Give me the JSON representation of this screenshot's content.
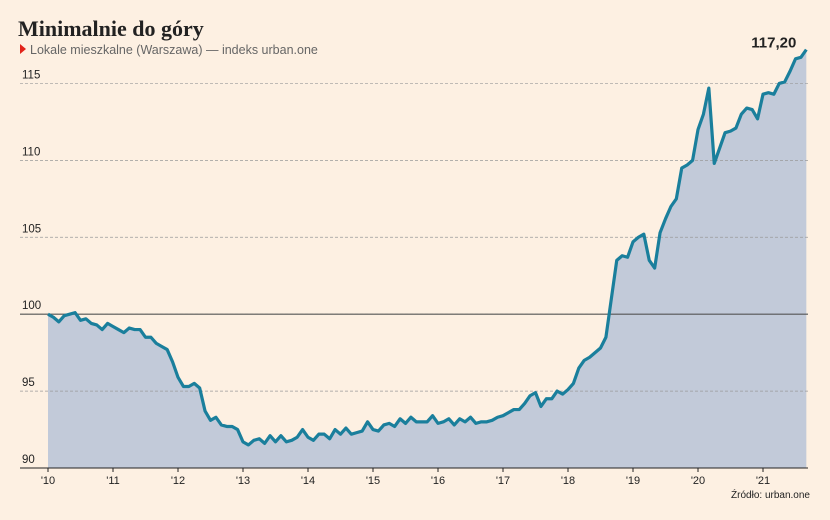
{
  "chart_data": {
    "type": "area",
    "title": "Minimalnie do góry",
    "subtitle": "Lokale mieszkalne (Warszawa) — indeks urban.one",
    "source": "Źródło: urban.one",
    "categories": [
      "'10",
      null,
      null,
      null,
      null,
      null,
      null,
      null,
      null,
      null,
      null,
      null,
      "'11",
      null,
      null,
      null,
      null,
      null,
      null,
      null,
      null,
      null,
      null,
      null,
      "'12",
      null,
      null,
      null,
      null,
      null,
      null,
      null,
      null,
      null,
      null,
      null,
      "'13",
      null,
      null,
      null,
      null,
      null,
      null,
      null,
      null,
      null,
      null,
      null,
      "'14",
      null,
      null,
      null,
      null,
      null,
      null,
      null,
      null,
      null,
      null,
      null,
      "'15",
      null,
      null,
      null,
      null,
      null,
      null,
      null,
      null,
      null,
      null,
      null,
      "'16",
      null,
      null,
      null,
      null,
      null,
      null,
      null,
      null,
      null,
      null,
      null,
      "'17",
      null,
      null,
      null,
      null,
      null,
      null,
      null,
      null,
      null,
      null,
      null,
      "'18",
      null,
      null,
      null,
      null,
      null,
      null,
      null,
      null,
      null,
      null,
      null,
      "'19",
      null,
      null,
      null,
      null,
      null,
      null,
      null,
      null,
      null,
      null,
      null,
      "'20",
      null,
      null,
      null,
      null,
      null,
      null,
      null,
      null,
      null,
      null,
      null,
      "'21",
      null,
      null,
      null,
      null,
      null,
      null,
      null,
      null
    ],
    "values": [
      100,
      99.8,
      99.5,
      99.9,
      100,
      100.1,
      99.6,
      99.7,
      99.4,
      99.3,
      99.0,
      99.4,
      99.2,
      99.0,
      98.8,
      99.1,
      99.0,
      99.0,
      98.5,
      98.5,
      98.1,
      97.9,
      97.7,
      96.9,
      95.9,
      95.3,
      95.3,
      95.5,
      95.2,
      93.7,
      93.1,
      93.3,
      92.8,
      92.7,
      92.7,
      92.5,
      91.7,
      91.5,
      91.8,
      91.9,
      91.6,
      92.1,
      91.7,
      92.1,
      91.7,
      91.8,
      92.0,
      92.5,
      92.0,
      91.8,
      92.2,
      92.2,
      91.9,
      92.5,
      92.2,
      92.6,
      92.2,
      92.3,
      92.4,
      93.0,
      92.5,
      92.4,
      92.8,
      92.9,
      92.7,
      93.2,
      92.9,
      93.3,
      93.0,
      93.0,
      93.0,
      93.4,
      92.9,
      93.0,
      93.2,
      92.8,
      93.2,
      93.0,
      93.3,
      92.9,
      93.0,
      93.0,
      93.1,
      93.3,
      93.4,
      93.6,
      93.8,
      93.8,
      94.2,
      94.7,
      94.9,
      94.0,
      94.5,
      94.5,
      95.0,
      94.8,
      95.1,
      95.5,
      96.5,
      97.0,
      97.2,
      97.5,
      97.8,
      98.5,
      101.0,
      103.5,
      103.8,
      103.7,
      104.7,
      105.0,
      105.2,
      103.5,
      103.0,
      105.3,
      106.2,
      107.0,
      107.5,
      109.5,
      109.7,
      110.0,
      112.0,
      113.0,
      114.7,
      109.8,
      110.8,
      111.8,
      111.9,
      112.1,
      113.0,
      113.4,
      113.3,
      112.7,
      114.3,
      114.4,
      114.3,
      115.0,
      115.1,
      115.8,
      116.6,
      116.7,
      117.2
    ],
    "value_labels": [
      null,
      null,
      null,
      null,
      null,
      null,
      null,
      null,
      null,
      null,
      null,
      null,
      null,
      null,
      null,
      null,
      null,
      null,
      null,
      null,
      null,
      null,
      null,
      null,
      null,
      null,
      null,
      null,
      null,
      null,
      null,
      null,
      null,
      null,
      null,
      null,
      null,
      null,
      null,
      null,
      null,
      null,
      null,
      null,
      null,
      null,
      null,
      null,
      null,
      null,
      null,
      null,
      null,
      null,
      null,
      null,
      null,
      null,
      null,
      null,
      null,
      null,
      null,
      null,
      null,
      null,
      null,
      null,
      null,
      null,
      null,
      null,
      null,
      null,
      null,
      null,
      null,
      null,
      null,
      null,
      null,
      null,
      null,
      null,
      null,
      null,
      null,
      null,
      null,
      null,
      null,
      null,
      null,
      null,
      null,
      null,
      null,
      null,
      null,
      null,
      null,
      null,
      null,
      null,
      null,
      null,
      null,
      null,
      null,
      null,
      null,
      null,
      null,
      null,
      null,
      null,
      null,
      null,
      null,
      null,
      null,
      null,
      null,
      null,
      null,
      null,
      null,
      null,
      null,
      null,
      null,
      null,
      null,
      null,
      null,
      null,
      null,
      null,
      null,
      null,
      "117,20"
    ],
    "color": "#1a7f9c",
    "fill": "#c2cad9",
    "reference": 100,
    "ylim": [
      90,
      117.5
    ],
    "yticks": [
      90,
      95,
      100,
      105,
      110,
      115
    ],
    "grid": true
  }
}
